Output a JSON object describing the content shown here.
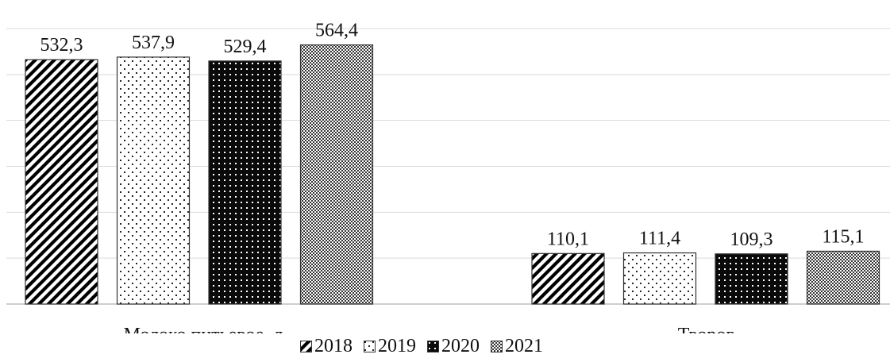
{
  "chart_data": {
    "type": "bar",
    "categories": [
      "Молоко питьевое, л",
      "Творог"
    ],
    "series": [
      {
        "name": "2018",
        "values": [
          532.3,
          110.1
        ],
        "pattern": "diagonal-stripes"
      },
      {
        "name": "2019",
        "values": [
          537.9,
          111.4
        ],
        "pattern": "sparse-dots"
      },
      {
        "name": "2020",
        "values": [
          529.4,
          109.3
        ],
        "pattern": "dark-dots"
      },
      {
        "name": "2021",
        "values": [
          564.4,
          115.1
        ],
        "pattern": "grey-checker"
      }
    ],
    "data_labels": [
      [
        "532,3",
        "110,1"
      ],
      [
        "537,9",
        "111,4"
      ],
      [
        "529,4",
        "109,3"
      ],
      [
        "564,4",
        "115,1"
      ]
    ],
    "ylim": [
      0,
      600
    ],
    "grid": true,
    "legend_position": "bottom",
    "title": "",
    "xlabel": "",
    "ylabel": ""
  }
}
